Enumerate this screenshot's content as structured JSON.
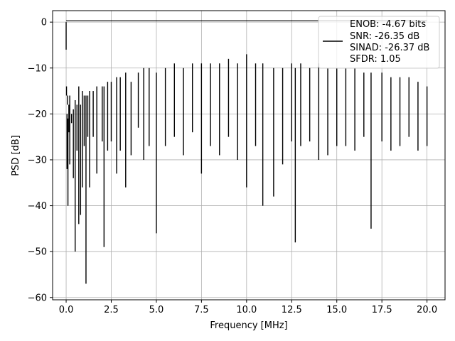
{
  "chart_data": {
    "type": "line",
    "title": "",
    "xlabel": "Frequency [MHz]",
    "ylabel": "PSD [dB]",
    "xlim": [
      -0.75,
      21.0
    ],
    "ylim": [
      -60.5,
      2.5
    ],
    "xticks": [
      0.0,
      2.5,
      5.0,
      7.5,
      10.0,
      12.5,
      15.0,
      17.5,
      20.0
    ],
    "xtick_labels": [
      "0.0",
      "2.5",
      "5.0",
      "7.5",
      "10.0",
      "12.5",
      "15.0",
      "17.5",
      "20.0"
    ],
    "yticks": [
      0,
      -10,
      -20,
      -30,
      -40,
      -50,
      -60
    ],
    "ytick_labels": [
      "0",
      "−10",
      "−20",
      "−30",
      "−40",
      "−50",
      "−60"
    ],
    "grid": true,
    "legend_position": "top-right",
    "legend_lines": [
      "ENOB: -4.67 bits",
      "SNR: -26.35 dB",
      "SINAD: -26.37 dB",
      "SFDR: 1.05"
    ],
    "line_color": "#000000",
    "series": [
      {
        "x": [
          0.0,
          0.02,
          0.05,
          0.08,
          0.1,
          0.15,
          0.2,
          0.3,
          0.4,
          0.5,
          0.6,
          0.7,
          0.8,
          0.9,
          1.0,
          1.1,
          1.2,
          1.3,
          1.5,
          1.7,
          2.0,
          2.1,
          2.3,
          2.5,
          2.8,
          3.0,
          3.3,
          3.6,
          4.0,
          4.3,
          4.6,
          5.0,
          5.5,
          6.0,
          6.5,
          7.0,
          7.5,
          8.0,
          8.5,
          9.0,
          9.5,
          10.0,
          10.5,
          10.9,
          11.5,
          12.0,
          12.5,
          12.7,
          13.0,
          13.5,
          14.0,
          14.5,
          15.0,
          15.5,
          16.0,
          16.5,
          16.9,
          17.5,
          18.0,
          18.5,
          19.0,
          19.5,
          20.0
        ],
        "y": [
          0.0,
          -14,
          -32,
          -18,
          -40,
          -24,
          -31,
          -22,
          -34,
          -50,
          -28,
          -44,
          -42,
          -36,
          -27,
          -57,
          -25,
          -36,
          -25,
          -33,
          -26,
          -49,
          -28,
          -26,
          -33,
          -28,
          -36,
          -29,
          -23,
          -30,
          -27,
          -46,
          -27,
          -25,
          -29,
          -24,
          -33,
          -27,
          -29,
          -25,
          -30,
          -36,
          -27,
          -40,
          -38,
          -31,
          -26,
          -48,
          -27,
          -26,
          -30,
          -29,
          -27,
          -27,
          -28,
          -25,
          -45,
          -26,
          -28,
          -27,
          -25,
          -28,
          -27
        ],
        "y_top": [
          0.0,
          -10,
          -14,
          -10,
          -15,
          -12,
          -10,
          -14,
          -13,
          -11,
          -12,
          -8,
          -12,
          -9,
          -10,
          -10,
          -10,
          -9,
          -9,
          -8,
          -8,
          -8,
          -7,
          -7,
          -6,
          -6,
          -5,
          -7,
          -5,
          -4,
          -4,
          -5,
          -4,
          -3,
          -4,
          -3,
          -3,
          -3,
          -3,
          -2,
          -3,
          -1,
          -3,
          -3,
          -4,
          -4,
          -3,
          -4,
          -3,
          -4,
          -3,
          -4,
          -4,
          -4,
          -4,
          -5,
          -5,
          -5,
          -6,
          -6,
          -6,
          -7,
          -8
        ]
      }
    ]
  }
}
